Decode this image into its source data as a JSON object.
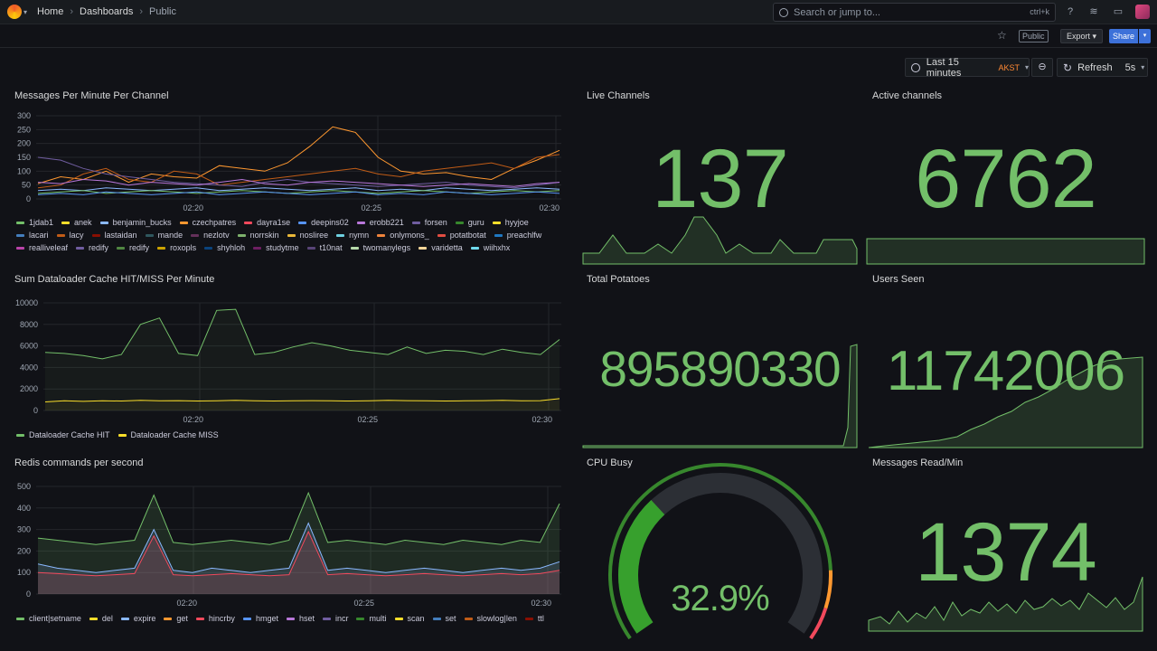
{
  "nav": {
    "breadcrumbs": [
      "Home",
      "Dashboards",
      "Public"
    ],
    "search_placeholder": "Search or jump to...",
    "search_shortcut": "ctrl+k"
  },
  "toolbar": {
    "public_tag": "Public",
    "export_label": "Export",
    "share_label": "Share"
  },
  "time": {
    "range_label": "Last 15 minutes",
    "timezone": "AKST",
    "refresh_label": "Refresh",
    "refresh_interval": "5s"
  },
  "colors": {
    "stat_green": "#73bf69",
    "background": "#111217",
    "accent_blue": "#3d71d9"
  },
  "panels": {
    "messages": {
      "title": "Messages Per Minute Per Channel",
      "legend": [
        {
          "name": "1jdab1",
          "color": "#73bf69"
        },
        {
          "name": "anek",
          "color": "#fade2a"
        },
        {
          "name": "benjamin_bucks",
          "color": "#8ab8ff"
        },
        {
          "name": "czechpatres",
          "color": "#ff9830"
        },
        {
          "name": "dayra1se",
          "color": "#f2495c"
        },
        {
          "name": "deepins02",
          "color": "#5794f2"
        },
        {
          "name": "erobb221",
          "color": "#b877d9"
        },
        {
          "name": "forsen",
          "color": "#705da0"
        },
        {
          "name": "guru",
          "color": "#37872d"
        },
        {
          "name": "hyyjoe",
          "color": "#fade2a"
        },
        {
          "name": "lacari",
          "color": "#447ebc"
        },
        {
          "name": "lacy",
          "color": "#c15c17"
        },
        {
          "name": "lastaidan",
          "color": "#890f02"
        },
        {
          "name": "mande",
          "color": "#2f575e"
        },
        {
          "name": "nezlotv",
          "color": "#64305a"
        },
        {
          "name": "norrskin",
          "color": "#7eb26d"
        },
        {
          "name": "nosliree",
          "color": "#eab839"
        },
        {
          "name": "nymn",
          "color": "#6ed0e0"
        },
        {
          "name": "onlymons_",
          "color": "#ef843c"
        },
        {
          "name": "potatbotat",
          "color": "#e24d42"
        },
        {
          "name": "preachlfw",
          "color": "#1f78c1"
        },
        {
          "name": "realliveleaf",
          "color": "#ba43a9"
        },
        {
          "name": "redify",
          "color": "#705da0"
        },
        {
          "name": "redify",
          "color": "#508642"
        },
        {
          "name": "roxopls",
          "color": "#cca300"
        },
        {
          "name": "shyhloh",
          "color": "#0a437c"
        },
        {
          "name": "studytme",
          "color": "#6d1f62"
        },
        {
          "name": "t10nat",
          "color": "#584477"
        },
        {
          "name": "twomanylegs",
          "color": "#b7dbab"
        },
        {
          "name": "varidetta",
          "color": "#f4d598"
        },
        {
          "name": "wiihxhx",
          "color": "#70dbed"
        }
      ]
    },
    "dataloader": {
      "title": "Sum Dataloader Cache HIT/MISS Per Minute",
      "legend": [
        {
          "name": "Dataloader Cache HIT",
          "color": "#73bf69"
        },
        {
          "name": "Dataloader Cache MISS",
          "color": "#fade2a"
        }
      ]
    },
    "redis": {
      "title": "Redis commands per second",
      "legend": [
        {
          "name": "client|setname",
          "color": "#73bf69"
        },
        {
          "name": "del",
          "color": "#fade2a"
        },
        {
          "name": "expire",
          "color": "#8ab8ff"
        },
        {
          "name": "get",
          "color": "#ff9830"
        },
        {
          "name": "hincrby",
          "color": "#f2495c"
        },
        {
          "name": "hmget",
          "color": "#5794f2"
        },
        {
          "name": "hset",
          "color": "#b877d9"
        },
        {
          "name": "incr",
          "color": "#705da0"
        },
        {
          "name": "multi",
          "color": "#37872d"
        },
        {
          "name": "scan",
          "color": "#fade2a"
        },
        {
          "name": "set",
          "color": "#447ebc"
        },
        {
          "name": "slowlog|len",
          "color": "#c15c17"
        },
        {
          "name": "ttl",
          "color": "#890f02"
        }
      ]
    },
    "live_channels": {
      "title": "Live Channels",
      "value": "137"
    },
    "active_channels": {
      "title": "Active channels",
      "value": "6762"
    },
    "total_potatoes": {
      "title": "Total Potatoes",
      "value": "895890330"
    },
    "users_seen": {
      "title": "Users Seen",
      "value": "11742006"
    },
    "cpu_busy": {
      "title": "CPU Busy",
      "value": "32.9%",
      "percent": 32.9
    },
    "messages_read": {
      "title": "Messages Read/Min",
      "value": "1374"
    }
  },
  "chart_data": [
    {
      "type": "line",
      "title": "Messages Per Minute Per Channel",
      "ylim": [
        0,
        300
      ],
      "yticks": [
        "300",
        "250",
        "200",
        "150",
        "100",
        "50",
        "0"
      ],
      "xticks": [
        "02:20",
        "02:25",
        "02:30"
      ],
      "series": [
        {
          "name": "czechpatres",
          "values": [
            55,
            80,
            70,
            100,
            60,
            90,
            80,
            75,
            120,
            110,
            100,
            130,
            190,
            260,
            240,
            150,
            100,
            90,
            95,
            80,
            70,
            110,
            140,
            175
          ]
        },
        {
          "name": "lacy",
          "values": [
            40,
            50,
            90,
            110,
            70,
            60,
            100,
            90,
            50,
            60,
            70,
            80,
            90,
            100,
            110,
            90,
            80,
            100,
            110,
            120,
            130,
            110,
            150,
            160
          ]
        },
        {
          "name": "forsen",
          "values": [
            150,
            140,
            110,
            90,
            80,
            70,
            60,
            55,
            50,
            45,
            60,
            70,
            60,
            55,
            50,
            45,
            50,
            55,
            60,
            50,
            45,
            40,
            50,
            60
          ]
        },
        {
          "name": "erobb221",
          "values": [
            60,
            55,
            70,
            65,
            50,
            60,
            55,
            50,
            60,
            70,
            55,
            50,
            60,
            65,
            60,
            55,
            50,
            45,
            50,
            55,
            50,
            45,
            55,
            60
          ]
        },
        {
          "name": "benjamin_bucks",
          "values": [
            30,
            35,
            30,
            40,
            35,
            30,
            35,
            40,
            30,
            35,
            40,
            35,
            30,
            35,
            40,
            30,
            35,
            30,
            40,
            35,
            30,
            35,
            40,
            35
          ]
        },
        {
          "name": "1jdab1",
          "values": [
            20,
            25,
            30,
            20,
            25,
            30,
            25,
            20,
            25,
            30,
            25,
            20,
            25,
            30,
            25,
            20,
            25,
            30,
            25,
            20,
            25,
            30,
            25,
            30
          ]
        },
        {
          "name": "deepins02",
          "values": [
            15,
            20,
            15,
            25,
            20,
            15,
            20,
            25,
            15,
            20,
            25,
            20,
            15,
            20,
            25,
            15,
            20,
            15,
            25,
            20,
            15,
            20,
            25,
            20
          ]
        }
      ]
    },
    {
      "type": "line",
      "title": "Sum Dataloader Cache HIT/MISS Per Minute",
      "ylim": [
        0,
        10000
      ],
      "yticks": [
        "10000",
        "8000",
        "6000",
        "4000",
        "2000",
        "0"
      ],
      "xticks": [
        "02:20",
        "02:25",
        "02:30"
      ],
      "series": [
        {
          "name": "Dataloader Cache HIT",
          "values": [
            5400,
            5300,
            5100,
            4800,
            5200,
            8000,
            8600,
            5300,
            5100,
            9300,
            9400,
            5200,
            5400,
            5900,
            6300,
            6000,
            5600,
            5400,
            5200,
            5900,
            5300,
            5600,
            5500,
            5200,
            5700,
            5400,
            5200,
            6600
          ]
        },
        {
          "name": "Dataloader Cache MISS",
          "values": [
            800,
            900,
            850,
            900,
            880,
            950,
            900,
            920,
            880,
            900,
            950,
            900,
            880,
            900,
            920,
            900,
            880,
            900,
            950,
            920,
            900,
            880,
            900,
            920,
            950,
            900,
            920,
            1100
          ]
        }
      ]
    },
    {
      "type": "area",
      "title": "Redis commands per second",
      "ylim": [
        0,
        500
      ],
      "yticks": [
        "500",
        "400",
        "300",
        "200",
        "100",
        "0"
      ],
      "xticks": [
        "02:20",
        "02:25",
        "02:30"
      ],
      "series": [
        {
          "name": "client|setname",
          "values": [
            260,
            250,
            240,
            230,
            240,
            250,
            460,
            240,
            230,
            240,
            250,
            240,
            230,
            250,
            470,
            240,
            250,
            240,
            230,
            250,
            240,
            230,
            250,
            240,
            230,
            250,
            240,
            420
          ]
        },
        {
          "name": "expire",
          "values": [
            140,
            120,
            110,
            100,
            110,
            120,
            300,
            110,
            100,
            120,
            110,
            100,
            110,
            120,
            330,
            110,
            120,
            110,
            100,
            110,
            120,
            110,
            100,
            110,
            120,
            110,
            120,
            150
          ]
        },
        {
          "name": "hincrby",
          "values": [
            100,
            95,
            90,
            85,
            90,
            95,
            270,
            90,
            85,
            90,
            95,
            90,
            85,
            90,
            290,
            90,
            95,
            90,
            85,
            90,
            95,
            90,
            85,
            90,
            95,
            90,
            95,
            110
          ]
        }
      ]
    }
  ]
}
